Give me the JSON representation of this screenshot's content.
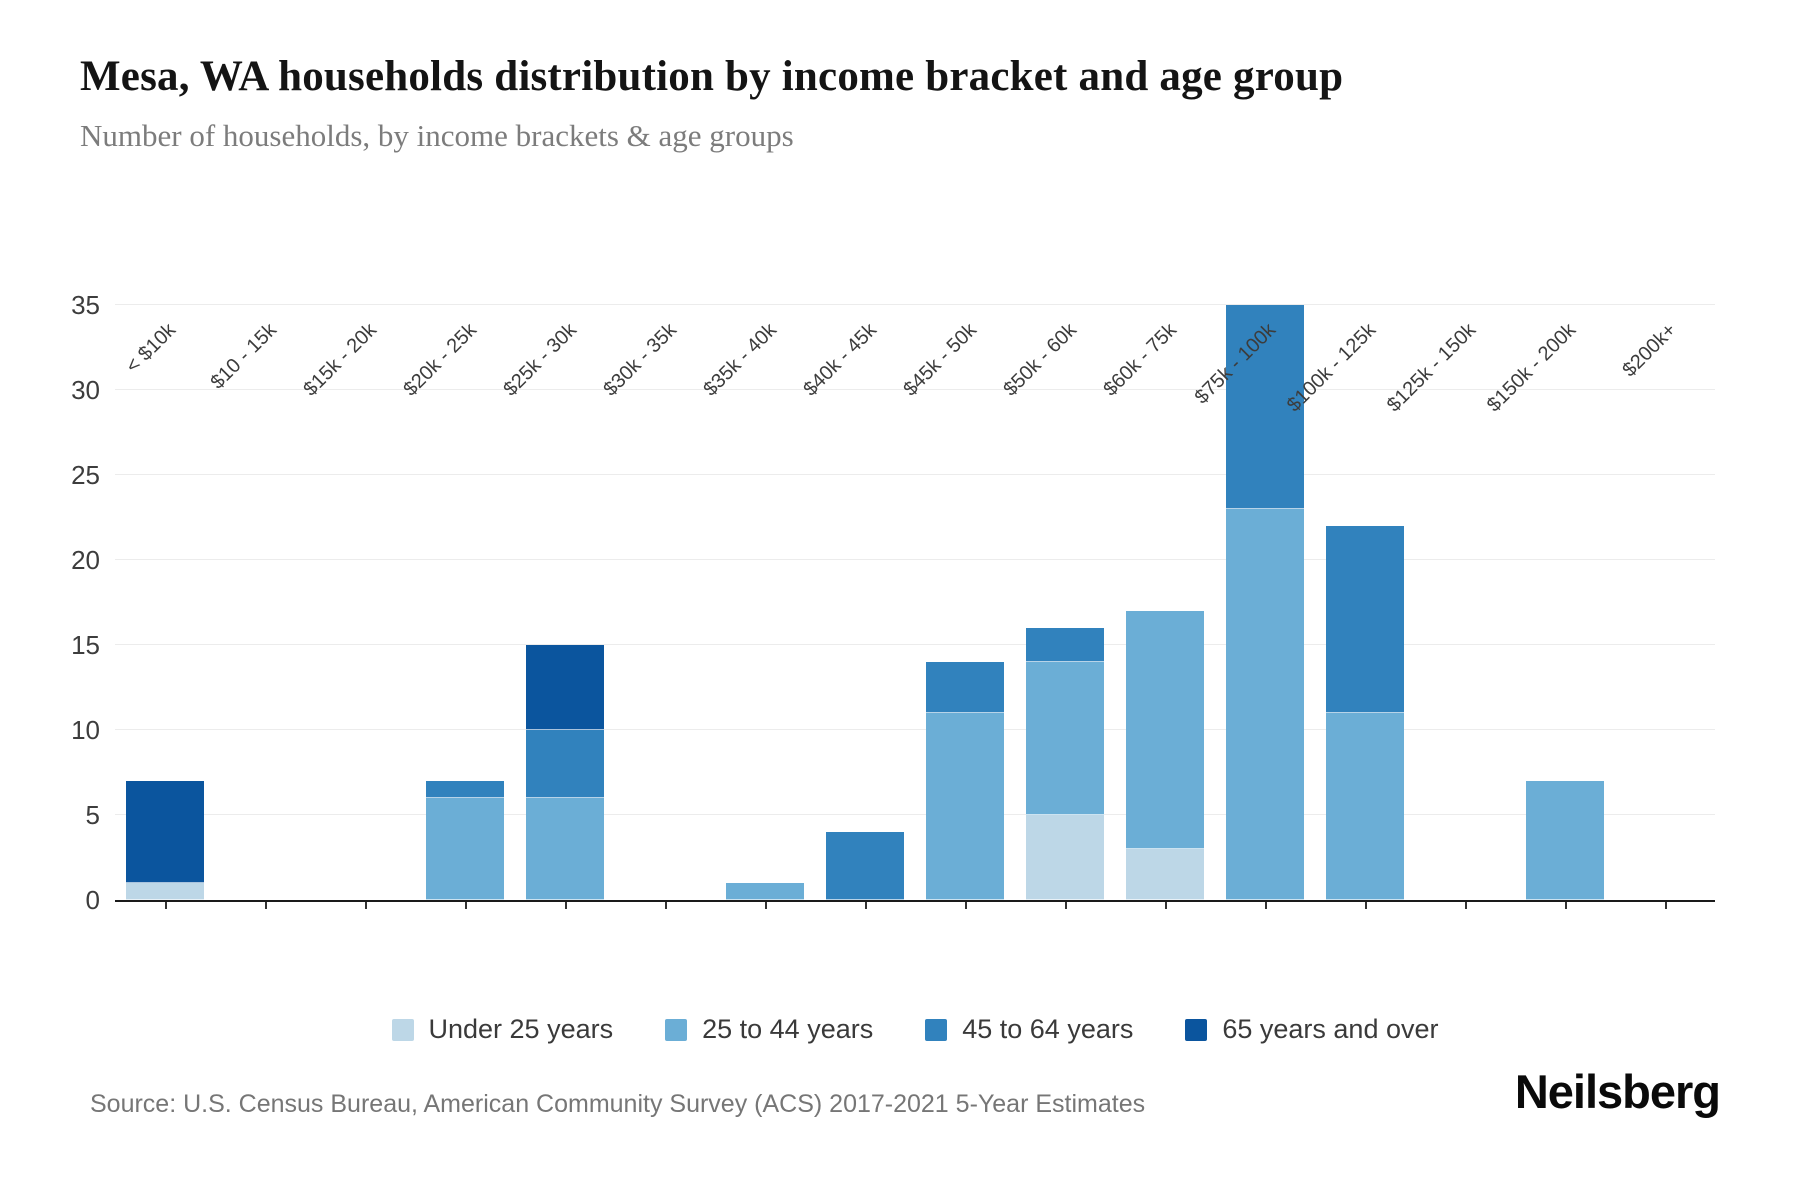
{
  "page": {
    "title": "Mesa, WA households distribution by income bracket and age group",
    "subtitle": "Number of households, by income brackets & age groups",
    "source": "Source: U.S. Census Bureau, American Community Survey (ACS) 2017-2021 5-Year Estimates",
    "brand": "Neilsberg"
  },
  "colors": {
    "axis": "#1a1a1a",
    "grid": "#ececec",
    "under_25": "#bdd7e7",
    "age_25_44": "#6baed6",
    "age_45_64": "#3182bd",
    "age_65_over": "#0b559e"
  },
  "chart_data": {
    "type": "bar",
    "stacked": true,
    "title": "Mesa, WA households distribution by income bracket and age group",
    "subtitle": "Number of households, by income brackets & age groups",
    "xlabel": "",
    "ylabel": "Number of households",
    "ylim": [
      0,
      35
    ],
    "yticks": [
      0,
      5,
      10,
      15,
      20,
      25,
      30,
      35
    ],
    "grid": true,
    "legend_position": "bottom",
    "categories": [
      "< $10k",
      "$10 - 15k",
      "$15k - 20k",
      "$20k - 25k",
      "$25k - 30k",
      "$30k - 35k",
      "$35k - 40k",
      "$40k - 45k",
      "$45k - 50k",
      "$50k - 60k",
      "$60k - 75k",
      "$75k - 100k",
      "$100k - 125k",
      "$125k - 150k",
      "$150k - 200k",
      "$200k+"
    ],
    "series": [
      {
        "name": "Under 25 years",
        "color": "#bdd7e7",
        "values": [
          1,
          0,
          0,
          0,
          0,
          0,
          0,
          0,
          0,
          5,
          3,
          0,
          0,
          0,
          0,
          0
        ]
      },
      {
        "name": "25 to 44 years",
        "color": "#6baed6",
        "values": [
          0,
          0,
          0,
          6,
          6,
          0,
          1,
          0,
          11,
          9,
          14,
          23,
          11,
          0,
          7,
          0
        ]
      },
      {
        "name": "45 to 64 years",
        "color": "#3182bd",
        "values": [
          0,
          0,
          0,
          1,
          4,
          0,
          0,
          4,
          3,
          2,
          0,
          12,
          11,
          0,
          0,
          0
        ]
      },
      {
        "name": "65 years and over",
        "color": "#0b559e",
        "values": [
          6,
          0,
          0,
          0,
          5,
          0,
          0,
          0,
          0,
          0,
          0,
          0,
          0,
          0,
          0,
          0
        ]
      }
    ],
    "totals": [
      7,
      0,
      0,
      7,
      15,
      0,
      1,
      4,
      14,
      16,
      17,
      35,
      22,
      0,
      7,
      0
    ]
  }
}
